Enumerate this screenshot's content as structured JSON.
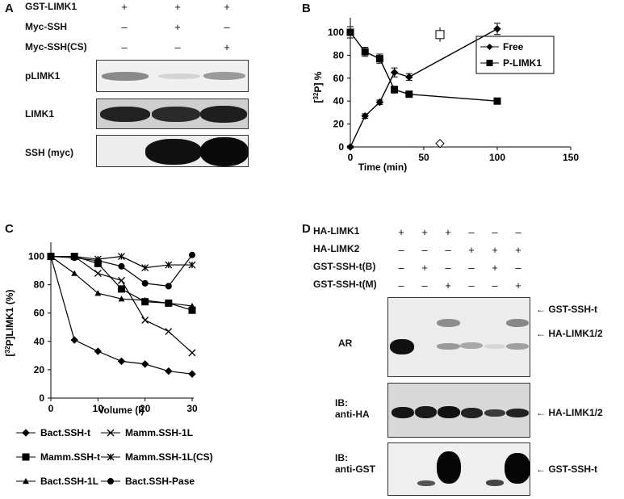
{
  "panel_a": {
    "label": "A",
    "rows": [
      {
        "name": "GST-LIMK1",
        "signs": [
          "+",
          "+",
          "+"
        ]
      },
      {
        "name": "Myc-SSH",
        "signs": [
          "–",
          "+",
          "–"
        ]
      },
      {
        "name": "Myc-SSH(CS)",
        "signs": [
          "–",
          "–",
          "+"
        ]
      }
    ],
    "blots": [
      "pLIMK1",
      "LIMK1",
      "SSH (myc)"
    ]
  },
  "panel_d": {
    "label": "D",
    "rows": [
      {
        "name": "HA-LIMK1",
        "signs": [
          "+",
          "+",
          "+",
          "–",
          "–",
          "–"
        ]
      },
      {
        "name": "HA-LIMK2",
        "signs": [
          "–",
          "–",
          "–",
          "+",
          "+",
          "+"
        ]
      },
      {
        "name": "GST-SSH-t(B)",
        "signs": [
          "–",
          "+",
          "–",
          "–",
          "+",
          "–"
        ]
      },
      {
        "name": "GST-SSH-t(M)",
        "signs": [
          "–",
          "–",
          "+",
          "–",
          "–",
          "+"
        ]
      }
    ],
    "blots": [
      {
        "label_lines": [
          "AR"
        ],
        "arrows": [
          "GST-SSH-t",
          "HA-LIMK1/2"
        ]
      },
      {
        "label_lines": [
          "IB:",
          "anti-HA"
        ],
        "arrows": [
          "HA-LIMK1/2"
        ]
      },
      {
        "label_lines": [
          "IB:",
          "anti-GST"
        ],
        "arrows": [
          "GST-SSH-t"
        ]
      }
    ]
  },
  "chart_data": [
    {
      "panel": "B",
      "type": "line",
      "title": "",
      "xlabel": "Time (min)",
      "ylabel": "[32P] %",
      "ylabel_parts": {
        "open": "[",
        "sup": "32",
        "rest": "P] %"
      },
      "xlim": [
        0,
        150
      ],
      "ylim": [
        0,
        100
      ],
      "xticks": [
        0,
        50,
        100,
        150
      ],
      "yticks": [
        0,
        20,
        40,
        60,
        80,
        100
      ],
      "legend": "top-right",
      "series": [
        {
          "name": "Free",
          "marker": "diamond",
          "x": [
            0,
            10,
            20,
            30,
            40,
            100
          ],
          "y": [
            0,
            27,
            39,
            65,
            61,
            103
          ],
          "err": [
            1,
            2,
            2,
            4,
            3,
            5
          ]
        },
        {
          "name": "P-LIMK1",
          "marker": "square",
          "x": [
            0,
            10,
            20,
            30,
            40,
            100
          ],
          "y": [
            100,
            83,
            77,
            50,
            46,
            40
          ],
          "err": [
            5,
            4,
            4,
            3,
            2,
            2
          ]
        }
      ],
      "annotations": [
        {
          "marker": "open-square",
          "x": 61,
          "y": 98
        },
        {
          "marker": "open-diamond",
          "x": 61,
          "y": 3
        }
      ]
    },
    {
      "panel": "C",
      "type": "line",
      "title": "",
      "xlabel": "Volume (l)",
      "ylabel": "[32P]LIMK1 (%)",
      "ylabel_parts": {
        "open": "[",
        "sup": "32",
        "rest": "P]LIMK1 (%)"
      },
      "xlim": [
        0,
        30
      ],
      "ylim": [
        0,
        110
      ],
      "xticks": [
        0,
        10,
        20,
        30
      ],
      "yticks": [
        0,
        20,
        40,
        60,
        80,
        100
      ],
      "legend": "bottom",
      "series": [
        {
          "name": "Bact.SSH-t",
          "marker": "diamond",
          "x": [
            0,
            5,
            10,
            15,
            20,
            25,
            30
          ],
          "y": [
            100,
            41,
            33,
            26,
            24,
            19,
            17
          ]
        },
        {
          "name": "Mamm.SSH-1L",
          "marker": "x",
          "x": [
            0,
            5,
            10,
            15,
            20,
            25,
            30
          ],
          "y": [
            100,
            100,
            88,
            83,
            55,
            47,
            32
          ]
        },
        {
          "name": "Mamm.SSH-t",
          "marker": "square",
          "x": [
            0,
            5,
            10,
            15,
            20,
            25,
            30
          ],
          "y": [
            100,
            100,
            95,
            77,
            68,
            67,
            62
          ]
        },
        {
          "name": "Mamm.SSH-1L(CS)",
          "marker": "star",
          "x": [
            0,
            5,
            10,
            15,
            20,
            25,
            30
          ],
          "y": [
            100,
            100,
            98,
            100,
            92,
            94,
            94
          ]
        },
        {
          "name": "Bact.SSH-1L",
          "marker": "triangle",
          "x": [
            0,
            5,
            10,
            15,
            20,
            25,
            30
          ],
          "y": [
            100,
            88,
            74,
            70,
            69,
            67,
            65
          ]
        },
        {
          "name": "Bact.SSH-Pase",
          "marker": "circle",
          "x": [
            0,
            5,
            10,
            15,
            20,
            25,
            30
          ],
          "y": [
            100,
            99,
            97,
            93,
            81,
            79,
            101
          ]
        }
      ]
    }
  ],
  "panel_c_label": "C",
  "panel_b_label": "B"
}
